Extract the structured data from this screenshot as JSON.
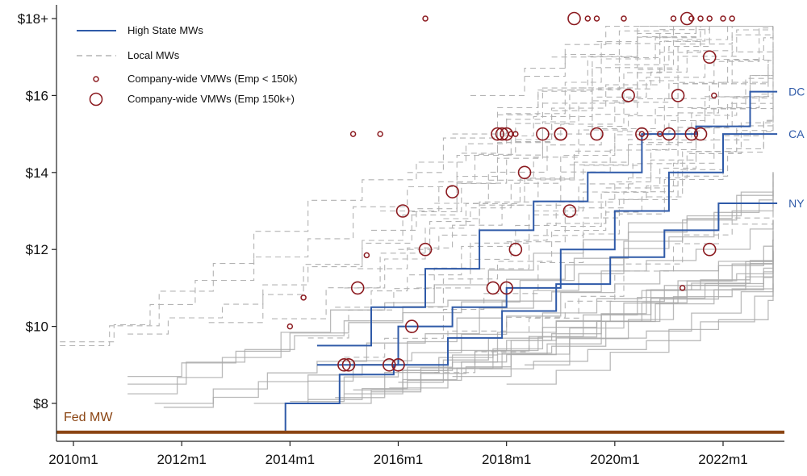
{
  "chart_data": {
    "type": "line",
    "title": "",
    "xlabel": "",
    "ylabel": "",
    "xlim": [
      "2009m10",
      "2023m2"
    ],
    "ylim": [
      7.1,
      18.4
    ],
    "x_ticks": [
      "2010m1",
      "2012m1",
      "2014m1",
      "2016m1",
      "2018m1",
      "2020m1",
      "2022m1"
    ],
    "y_ticks": [
      {
        "value": 8,
        "label": "$8"
      },
      {
        "value": 10,
        "label": "$10"
      },
      {
        "value": 12,
        "label": "$12"
      },
      {
        "value": 14,
        "label": "$14"
      },
      {
        "value": 16,
        "label": "$16"
      },
      {
        "value": 18,
        "label": "$18+"
      }
    ],
    "legend": {
      "position": "top-left",
      "entries": [
        {
          "label": "High State MWs",
          "symbol": "line"
        },
        {
          "label": "Local MWs",
          "symbol": "dashed-line"
        },
        {
          "label": "Company-wide VMWs (Emp < 150k)",
          "symbol": "small-circle"
        },
        {
          "label": "Company-wide VMWs (Emp 150k+)",
          "symbol": "large-circle"
        }
      ]
    },
    "colors": {
      "state": "#2f5aa8",
      "local": "#b3b3b3",
      "gray_state": "#a9a9a9",
      "vmw": "#8b1a1f",
      "fed": "#8b4513"
    },
    "fed_mw": {
      "label": "Fed MW",
      "value": 7.25
    },
    "high_state_series": [
      {
        "name": "DC",
        "points": [
          [
            "2014m7",
            9.5
          ],
          [
            "2015m7",
            10.5
          ],
          [
            "2016m7",
            11.5
          ],
          [
            "2017m7",
            12.5
          ],
          [
            "2018m7",
            13.25
          ],
          [
            "2019m7",
            14.0
          ],
          [
            "2020m7",
            15.0
          ],
          [
            "2021m7",
            15.2
          ],
          [
            "2022m7",
            16.1
          ],
          [
            "2023m1",
            16.1
          ]
        ]
      },
      {
        "name": "CA",
        "points": [
          [
            "2014m7",
            9.0
          ],
          [
            "2016m1",
            10.0
          ],
          [
            "2017m1",
            10.5
          ],
          [
            "2018m1",
            11.0
          ],
          [
            "2019m1",
            12.0
          ],
          [
            "2020m1",
            13.0
          ],
          [
            "2021m1",
            14.0
          ],
          [
            "2022m1",
            15.0
          ],
          [
            "2023m1",
            15.0
          ]
        ]
      },
      {
        "name": "NY",
        "points": [
          [
            "2013m12",
            7.25
          ],
          [
            "2013m12",
            8.0
          ],
          [
            "2014m12",
            8.75
          ],
          [
            "2015m12",
            9.0
          ],
          [
            "2016m12",
            9.7
          ],
          [
            "2017m12",
            10.4
          ],
          [
            "2018m12",
            11.1
          ],
          [
            "2019m12",
            11.8
          ],
          [
            "2020m12",
            12.5
          ],
          [
            "2021m12",
            13.2
          ],
          [
            "2023m1",
            13.2
          ]
        ]
      }
    ],
    "vmw_small": [
      [
        "2014m1",
        10.0
      ],
      [
        "2014m4",
        10.75
      ],
      [
        "2015m3",
        15.0
      ],
      [
        "2015m6",
        11.85
      ],
      [
        "2015m9",
        15.0
      ],
      [
        "2016m7",
        18.0
      ],
      [
        "2018m2",
        15.0
      ],
      [
        "2018m3",
        15.0
      ],
      [
        "2019m7",
        18.0
      ],
      [
        "2019m9",
        18.0
      ],
      [
        "2020m3",
        18.0
      ],
      [
        "2020m7",
        15.0
      ],
      [
        "2020m11",
        15.0
      ],
      [
        "2021m2",
        18.0
      ],
      [
        "2021m4",
        11.0
      ],
      [
        "2021m6",
        18.0
      ],
      [
        "2021m8",
        18.0
      ],
      [
        "2021m10",
        18.0
      ],
      [
        "2021m11",
        16.0
      ],
      [
        "2022m1",
        18.0
      ],
      [
        "2022m3",
        18.0
      ]
    ],
    "vmw_large": [
      [
        "2015m1",
        9.0
      ],
      [
        "2015m2",
        9.0
      ],
      [
        "2015m4",
        11.0
      ],
      [
        "2015m11",
        9.0
      ],
      [
        "2016m1",
        9.0
      ],
      [
        "2016m2",
        13.0
      ],
      [
        "2016m4",
        10.0
      ],
      [
        "2016m7",
        12.0
      ],
      [
        "2017m1",
        13.5
      ],
      [
        "2017m10",
        11.0
      ],
      [
        "2017m12",
        15.0
      ],
      [
        "2018m1",
        11.0
      ],
      [
        "2018m3",
        12.0
      ],
      [
        "2018m5",
        14.0
      ],
      [
        "2018m9",
        15.0
      ],
      [
        "2019m3",
        13.0
      ],
      [
        "2019m4",
        18.0
      ],
      [
        "2019m9",
        15.0
      ],
      [
        "2020m4",
        16.0
      ],
      [
        "2020m7",
        15.0
      ],
      [
        "2021m1",
        15.0
      ],
      [
        "2021m3",
        16.0
      ],
      [
        "2021m5",
        18.0
      ],
      [
        "2021m8",
        15.0
      ],
      [
        "2021m10",
        17.0
      ],
      [
        "2021m10",
        12.0
      ],
      [
        "2019m1",
        15.0
      ],
      [
        "2017m11",
        15.0
      ],
      [
        "2018m1",
        15.0
      ],
      [
        "2019m1",
        15.0
      ],
      [
        "2021m6",
        15.0
      ]
    ]
  }
}
